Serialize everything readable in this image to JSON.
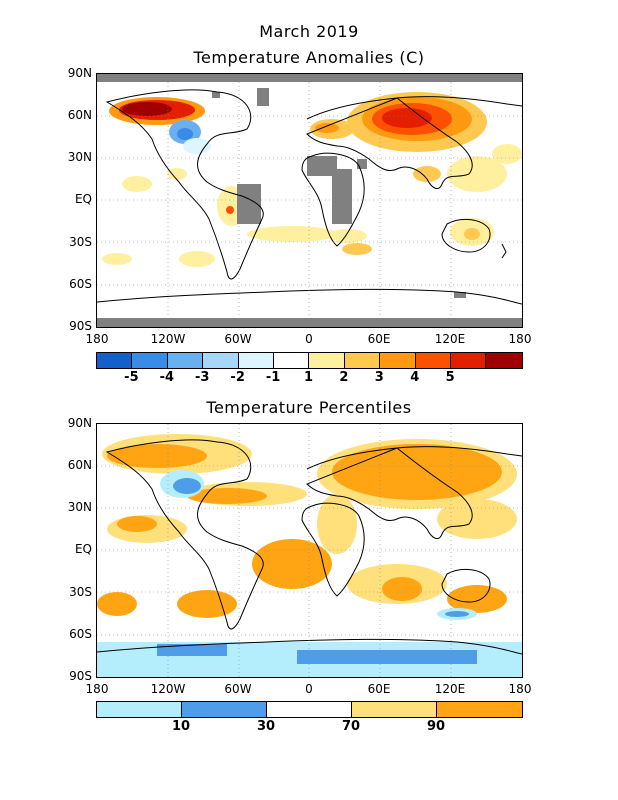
{
  "header": {
    "title": "March 2019",
    "subtitle": "Temperature Anomalies (C)"
  },
  "map2": {
    "title": "Temperature Percentiles"
  },
  "axes": {
    "y_ticks": [
      "90N",
      "60N",
      "30N",
      "EQ",
      "30S",
      "60S",
      "90S"
    ],
    "x_ticks": [
      "180",
      "120W",
      "60W",
      "0",
      "60E",
      "120E",
      "180"
    ]
  },
  "anomaly_colorbar": {
    "colors": [
      "#1560c8",
      "#3a8ae8",
      "#69b0f0",
      "#a6d6f8",
      "#dcf5ff",
      "#ffffff",
      "#fff0a0",
      "#ffc850",
      "#ff9a10",
      "#ff5000",
      "#e61e00",
      "#a00000"
    ],
    "labels": [
      "-5",
      "-4",
      "-3",
      "-2",
      "-1",
      "1",
      "2",
      "3",
      "4",
      "5"
    ]
  },
  "percentile_colorbar": {
    "colors": [
      "#b4eefc",
      "#4f9de8",
      "#ffffff",
      "#ffe07a",
      "#ffa514"
    ],
    "labels": [
      "10",
      "30",
      "70",
      "90"
    ]
  }
}
